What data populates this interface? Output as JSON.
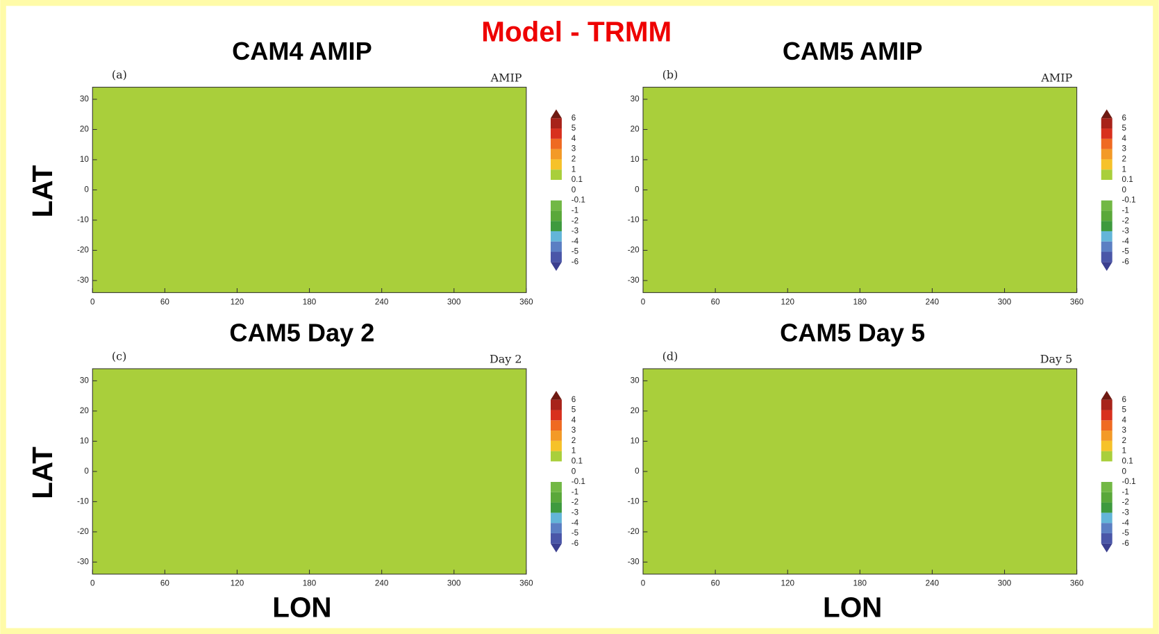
{
  "title": "Model - TRMM",
  "chart_data": [
    {
      "type": "contour",
      "title": "CAM4 AMIP",
      "panel_label": "(a)",
      "annotation": "AMIP",
      "y_label": "LAT",
      "xlim": [
        0,
        360
      ],
      "xticks": [
        0,
        60,
        120,
        180,
        240,
        300,
        360
      ],
      "ylim": [
        -34,
        34
      ],
      "yticks": [
        -30,
        -20,
        -10,
        0,
        10,
        20,
        30
      ],
      "colorbar": {
        "levels": [
          -6,
          -5,
          -4,
          -3,
          -2,
          -1,
          -0.1,
          0,
          0.1,
          1,
          2,
          3,
          4,
          5,
          6
        ],
        "colors": [
          "#3b3f8f",
          "#4a56a8",
          "#5b7fc3",
          "#63b5d8",
          "#3e9a3e",
          "#5aa83a",
          "#72b845",
          "#ffffff",
          "#ffffff",
          "#a9cf3b",
          "#f6c22a",
          "#f39a27",
          "#ef6a22",
          "#d8301e",
          "#a8231a",
          "#6e1a12"
        ]
      }
    },
    {
      "type": "contour",
      "title": "CAM5 AMIP",
      "panel_label": "(b)",
      "annotation": "AMIP",
      "xlim": [
        0,
        360
      ],
      "xticks": [
        0,
        60,
        120,
        180,
        240,
        300,
        360
      ],
      "ylim": [
        -34,
        34
      ],
      "yticks": [
        -30,
        -20,
        -10,
        0,
        10,
        20,
        30
      ],
      "colorbar": {
        "levels": [
          -6,
          -5,
          -4,
          -3,
          -2,
          -1,
          -0.1,
          0,
          0.1,
          1,
          2,
          3,
          4,
          5,
          6
        ],
        "colors": [
          "#3b3f8f",
          "#4a56a8",
          "#5b7fc3",
          "#63b5d8",
          "#3e9a3e",
          "#5aa83a",
          "#72b845",
          "#ffffff",
          "#ffffff",
          "#a9cf3b",
          "#f6c22a",
          "#f39a27",
          "#ef6a22",
          "#d8301e",
          "#a8231a",
          "#6e1a12"
        ]
      }
    },
    {
      "type": "contour",
      "title": "CAM5 Day 2",
      "panel_label": "(c)",
      "annotation": "Day 2",
      "y_label": "LAT",
      "x_label": "LON",
      "xlim": [
        0,
        360
      ],
      "xticks": [
        0,
        60,
        120,
        180,
        240,
        300,
        360
      ],
      "ylim": [
        -34,
        34
      ],
      "yticks": [
        -30,
        -20,
        -10,
        0,
        10,
        20,
        30
      ],
      "colorbar": {
        "levels": [
          -6,
          -5,
          -4,
          -3,
          -2,
          -1,
          -0.1,
          0,
          0.1,
          1,
          2,
          3,
          4,
          5,
          6
        ],
        "colors": [
          "#3b3f8f",
          "#4a56a8",
          "#5b7fc3",
          "#63b5d8",
          "#3e9a3e",
          "#5aa83a",
          "#72b845",
          "#ffffff",
          "#ffffff",
          "#a9cf3b",
          "#f6c22a",
          "#f39a27",
          "#ef6a22",
          "#d8301e",
          "#a8231a",
          "#6e1a12"
        ]
      }
    },
    {
      "type": "contour",
      "title": "CAM5 Day 5",
      "panel_label": "(d)",
      "annotation": "Day 5",
      "x_label": "LON",
      "xlim": [
        0,
        360
      ],
      "xticks": [
        0,
        60,
        120,
        180,
        240,
        300,
        360
      ],
      "ylim": [
        -34,
        34
      ],
      "yticks": [
        -30,
        -20,
        -10,
        0,
        10,
        20,
        30
      ],
      "colorbar": {
        "levels": [
          -6,
          -5,
          -4,
          -3,
          -2,
          -1,
          -0.1,
          0,
          0.1,
          1,
          2,
          3,
          4,
          5,
          6
        ],
        "colors": [
          "#3b3f8f",
          "#4a56a8",
          "#5b7fc3",
          "#63b5d8",
          "#3e9a3e",
          "#5aa83a",
          "#72b845",
          "#ffffff",
          "#ffffff",
          "#a9cf3b",
          "#f6c22a",
          "#f39a27",
          "#ef6a22",
          "#d8301e",
          "#a8231a",
          "#6e1a12"
        ]
      }
    }
  ]
}
